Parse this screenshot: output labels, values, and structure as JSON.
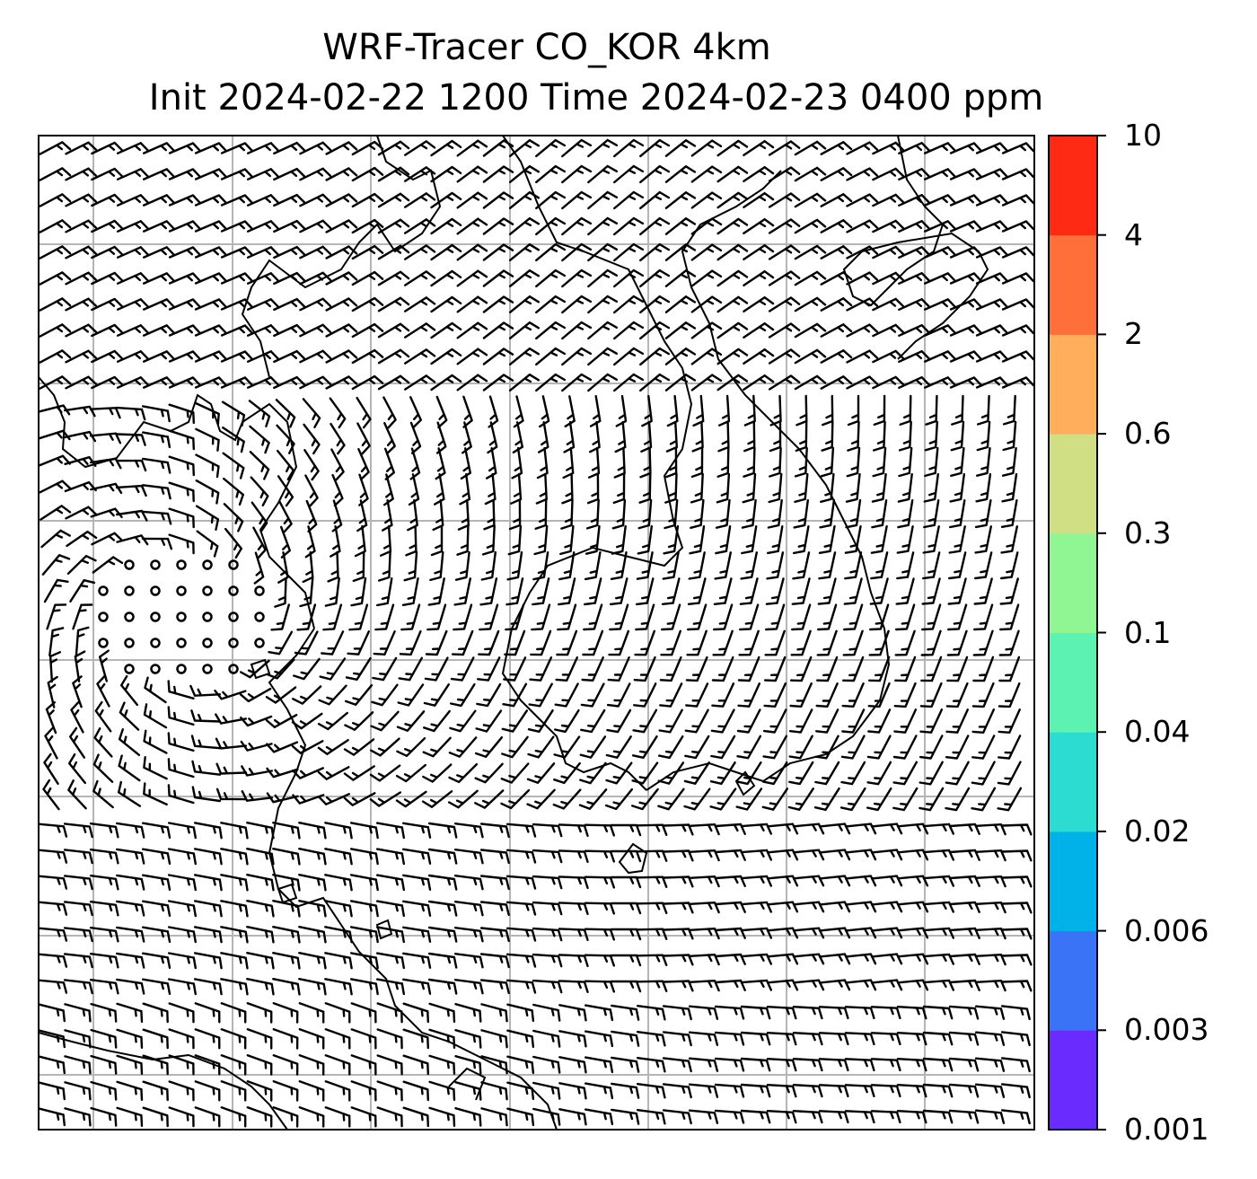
{
  "title": {
    "line1": "WRF-Tracer CO_KOR 4km",
    "line2": "Init 2024-02-22 1200 Time 2024-02-23 0400 ppm"
  },
  "colorbar": {
    "levels": [
      "0.001",
      "0.003",
      "0.006",
      "0.02",
      "0.04",
      "0.1",
      "0.3",
      "0.6",
      "2",
      "4",
      "10"
    ],
    "colors": [
      "#6a2bff",
      "#3a73f5",
      "#00b2e8",
      "#2ddcd1",
      "#5cf2b2",
      "#90f593",
      "#d1df84",
      "#ffae5c",
      "#ff6f3a",
      "#ff2a13"
    ]
  },
  "map": {
    "background": "#ffffff",
    "gridline_color": "#b5b5b5",
    "coastline_color": "#000000",
    "barb_color": "#000000"
  }
}
